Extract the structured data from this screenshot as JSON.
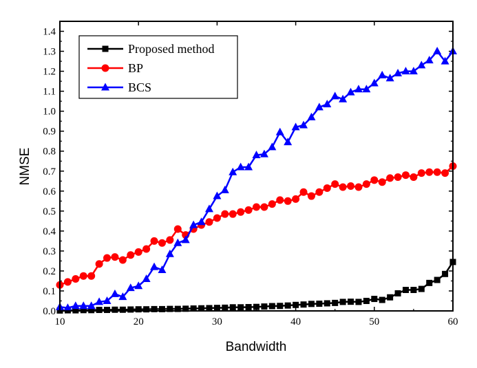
{
  "chart_data": {
    "type": "line",
    "title": "",
    "xlabel": "Bandwidth",
    "ylabel": "NMSE",
    "xlim": [
      10,
      60
    ],
    "ylim": [
      0,
      1.45
    ],
    "xticks": [
      10,
      20,
      30,
      40,
      50,
      60
    ],
    "yticks": [
      0.0,
      0.1,
      0.2,
      0.3,
      0.4,
      0.5,
      0.6,
      0.7,
      0.8,
      0.9,
      1.0,
      1.1,
      1.2,
      1.3,
      1.4
    ],
    "legend_position": "top-left",
    "x": [
      10,
      11,
      12,
      13,
      14,
      15,
      16,
      17,
      18,
      19,
      20,
      21,
      22,
      23,
      24,
      25,
      26,
      27,
      28,
      29,
      30,
      31,
      32,
      33,
      34,
      35,
      36,
      37,
      38,
      39,
      40,
      41,
      42,
      43,
      44,
      45,
      46,
      47,
      48,
      49,
      50,
      51,
      52,
      53,
      54,
      55,
      56,
      57,
      58,
      59,
      60
    ],
    "series": [
      {
        "name": "Proposed method",
        "color": "#000000",
        "marker": "square",
        "values": [
          0.002,
          0.003,
          0.003,
          0.004,
          0.004,
          0.005,
          0.005,
          0.006,
          0.006,
          0.007,
          0.008,
          0.008,
          0.009,
          0.009,
          0.01,
          0.01,
          0.011,
          0.012,
          0.013,
          0.014,
          0.015,
          0.016,
          0.018,
          0.018,
          0.019,
          0.02,
          0.022,
          0.024,
          0.025,
          0.027,
          0.03,
          0.032,
          0.035,
          0.036,
          0.038,
          0.04,
          0.045,
          0.046,
          0.045,
          0.05,
          0.06,
          0.055,
          0.068,
          0.088,
          0.105,
          0.105,
          0.11,
          0.14,
          0.155,
          0.185,
          0.245
        ]
      },
      {
        "name": "BP",
        "color": "#ff0000",
        "marker": "circle",
        "values": [
          0.13,
          0.145,
          0.16,
          0.175,
          0.175,
          0.235,
          0.265,
          0.27,
          0.255,
          0.28,
          0.295,
          0.31,
          0.35,
          0.34,
          0.355,
          0.41,
          0.38,
          0.41,
          0.43,
          0.445,
          0.465,
          0.485,
          0.485,
          0.495,
          0.505,
          0.52,
          0.52,
          0.535,
          0.555,
          0.55,
          0.56,
          0.595,
          0.575,
          0.595,
          0.615,
          0.635,
          0.62,
          0.625,
          0.62,
          0.635,
          0.655,
          0.645,
          0.665,
          0.67,
          0.68,
          0.67,
          0.69,
          0.695,
          0.695,
          0.69,
          0.725
        ]
      },
      {
        "name": "BCS",
        "color": "#0000ff",
        "marker": "triangle",
        "values": [
          0.02,
          0.015,
          0.025,
          0.025,
          0.025,
          0.045,
          0.05,
          0.085,
          0.07,
          0.115,
          0.125,
          0.16,
          0.22,
          0.205,
          0.285,
          0.34,
          0.355,
          0.43,
          0.445,
          0.51,
          0.575,
          0.605,
          0.695,
          0.72,
          0.72,
          0.78,
          0.785,
          0.82,
          0.895,
          0.845,
          0.92,
          0.93,
          0.97,
          1.02,
          1.035,
          1.075,
          1.06,
          1.095,
          1.11,
          1.11,
          1.14,
          1.18,
          1.165,
          1.19,
          1.2,
          1.2,
          1.23,
          1.255,
          1.3,
          1.25,
          1.3
        ]
      }
    ]
  }
}
